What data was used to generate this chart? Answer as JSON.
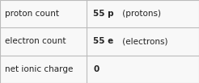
{
  "rows": [
    {
      "label": "proton count",
      "value_bold": "55 p",
      "value_normal": " (protons)"
    },
    {
      "label": "electron count",
      "value_bold": "55 e",
      "value_normal": " (electrons)"
    },
    {
      "label": "net ionic charge",
      "value_bold": "0",
      "value_normal": ""
    }
  ],
  "col_split": 0.435,
  "background_color": "#f8f8f8",
  "border_color": "#bbbbbb",
  "text_color": "#222222",
  "label_fontsize": 7.5,
  "value_fontsize": 7.5
}
